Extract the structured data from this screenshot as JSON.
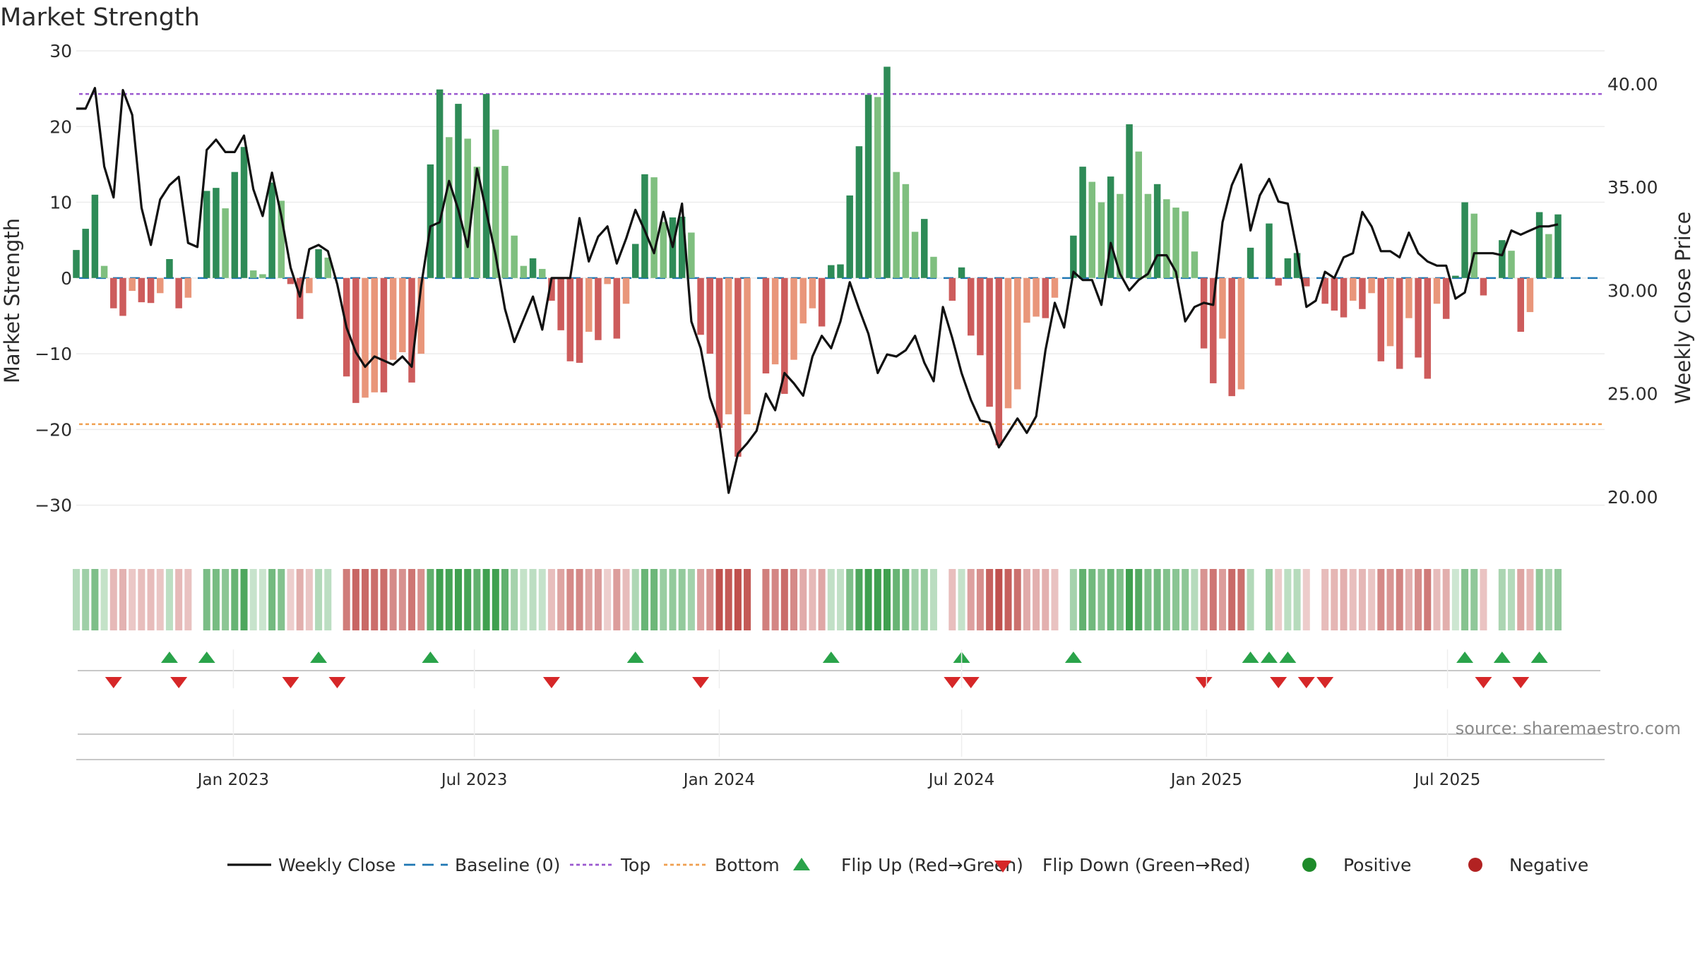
{
  "chart_data": {
    "type": "bar+line",
    "title": "Market Strength",
    "ylabel": "Market Strength",
    "y2label": "Weekly Close Price",
    "ylim": [
      -36,
      30
    ],
    "y2lim": [
      17.4,
      41.6
    ],
    "yticks": [
      30,
      20,
      10,
      0,
      -10,
      -20,
      -30
    ],
    "yticklabels": [
      "30",
      "20",
      "10",
      "0",
      "−10",
      "−20",
      "−30"
    ],
    "y2ticks": [
      40,
      35,
      30,
      25,
      20
    ],
    "y2ticklabels": [
      "40.00",
      "35.00",
      "30.00",
      "25.00",
      "20.00"
    ],
    "x_start": "2022-09-05",
    "x_end": "2025-10-27",
    "xticks": [
      "2023-01-01",
      "2023-07-01",
      "2024-01-01",
      "2024-07-01",
      "2025-01-01",
      "2025-07-01"
    ],
    "xticklabels": [
      "Jan 2023",
      "Jul 2023",
      "Jan 2024",
      "Jul 2024",
      "Jan 2025",
      "Jul 2025"
    ],
    "reference_lines": {
      "top": 24.3,
      "bottom": -19.3,
      "baseline": 0
    },
    "weeks": [
      {
        "date": "2022-09-05",
        "strength": 3.7,
        "close": 38.8
      },
      {
        "date": "2022-09-12",
        "strength": 6.5,
        "close": 38.8
      },
      {
        "date": "2022-09-19",
        "strength": 11,
        "close": 39.8
      },
      {
        "date": "2022-09-26",
        "strength": 1.6,
        "close": 36
      },
      {
        "date": "2022-10-03",
        "strength": -4,
        "close": 34.5
      },
      {
        "date": "2022-10-10",
        "strength": -5,
        "close": 39.7
      },
      {
        "date": "2022-10-17",
        "strength": -1.7,
        "close": 38.5
      },
      {
        "date": "2022-10-24",
        "strength": -3.2,
        "close": 34
      },
      {
        "date": "2022-10-31",
        "strength": -3.3,
        "close": 32.2
      },
      {
        "date": "2022-11-07",
        "strength": -2,
        "close": 34.4
      },
      {
        "date": "2022-11-14",
        "strength": 2.5,
        "close": 35.1
      },
      {
        "date": "2022-11-21",
        "strength": -4,
        "close": 35.5
      },
      {
        "date": "2022-11-28",
        "strength": -2.6,
        "close": 32.3
      },
      {
        "date": "2022-12-05",
        "strength": 0,
        "close": 32.1
      },
      {
        "date": "2022-12-12",
        "strength": 11.5,
        "close": 36.8
      },
      {
        "date": "2022-12-19",
        "strength": 11.9,
        "close": 37.3
      },
      {
        "date": "2022-12-26",
        "strength": 9.2,
        "close": 36.7
      },
      {
        "date": "2023-01-02",
        "strength": 14,
        "close": 36.7
      },
      {
        "date": "2023-01-09",
        "strength": 17.3,
        "close": 37.5
      },
      {
        "date": "2023-01-16",
        "strength": 1,
        "close": 34.9
      },
      {
        "date": "2023-01-23",
        "strength": 0.5,
        "close": 33.6
      },
      {
        "date": "2023-01-30",
        "strength": 12.6,
        "close": 35.7
      },
      {
        "date": "2023-02-06",
        "strength": 10.2,
        "close": 33.6
      },
      {
        "date": "2023-02-13",
        "strength": -0.8,
        "close": 31.1
      },
      {
        "date": "2023-02-20",
        "strength": -5.4,
        "close": 29.7
      },
      {
        "date": "2023-02-27",
        "strength": -2,
        "close": 32
      },
      {
        "date": "2023-03-06",
        "strength": 3.8,
        "close": 32.2
      },
      {
        "date": "2023-03-13",
        "strength": 2.7,
        "close": 31.9
      },
      {
        "date": "2023-03-20",
        "strength": 0,
        "close": 30.3
      },
      {
        "date": "2023-03-27",
        "strength": -13,
        "close": 28.2
      },
      {
        "date": "2023-04-03",
        "strength": -16.5,
        "close": 27
      },
      {
        "date": "2023-04-10",
        "strength": -15.8,
        "close": 26.3
      },
      {
        "date": "2023-04-17",
        "strength": -15.1,
        "close": 26.8
      },
      {
        "date": "2023-04-24",
        "strength": -15.1,
        "close": 26.6
      },
      {
        "date": "2023-05-01",
        "strength": -10.8,
        "close": 26.4
      },
      {
        "date": "2023-05-08",
        "strength": -9.8,
        "close": 26.8
      },
      {
        "date": "2023-05-15",
        "strength": -13.8,
        "close": 26.3
      },
      {
        "date": "2023-05-22",
        "strength": -10,
        "close": 30.2
      },
      {
        "date": "2023-05-29",
        "strength": 15,
        "close": 33.1
      },
      {
        "date": "2023-06-05",
        "strength": 24.9,
        "close": 33.3
      },
      {
        "date": "2023-06-12",
        "strength": 18.6,
        "close": 35.3
      },
      {
        "date": "2023-06-19",
        "strength": 23,
        "close": 33.9
      },
      {
        "date": "2023-06-26",
        "strength": 18.4,
        "close": 32.1
      },
      {
        "date": "2023-07-03",
        "strength": 14.7,
        "close": 35.9
      },
      {
        "date": "2023-07-10",
        "strength": 24.3,
        "close": 33.8
      },
      {
        "date": "2023-07-17",
        "strength": 19.6,
        "close": 31.7
      },
      {
        "date": "2023-07-24",
        "strength": 14.8,
        "close": 29.1
      },
      {
        "date": "2023-07-31",
        "strength": 5.6,
        "close": 27.5
      },
      {
        "date": "2023-08-07",
        "strength": 1.6,
        "close": 28.6
      },
      {
        "date": "2023-08-14",
        "strength": 2.6,
        "close": 29.7
      },
      {
        "date": "2023-08-21",
        "strength": 1.2,
        "close": 28.1
      },
      {
        "date": "2023-08-28",
        "strength": -3,
        "close": 30.6
      },
      {
        "date": "2023-09-04",
        "strength": -6.9,
        "close": 30.6
      },
      {
        "date": "2023-09-11",
        "strength": -11,
        "close": 30.6
      },
      {
        "date": "2023-09-18",
        "strength": -11.2,
        "close": 33.5
      },
      {
        "date": "2023-09-25",
        "strength": -7.1,
        "close": 31.4
      },
      {
        "date": "2023-10-02",
        "strength": -8.2,
        "close": 32.6
      },
      {
        "date": "2023-10-09",
        "strength": -0.8,
        "close": 33.1
      },
      {
        "date": "2023-10-16",
        "strength": -8,
        "close": 31.3
      },
      {
        "date": "2023-10-23",
        "strength": -3.4,
        "close": 32.5
      },
      {
        "date": "2023-10-30",
        "strength": 4.5,
        "close": 33.9
      },
      {
        "date": "2023-11-06",
        "strength": 13.7,
        "close": 32.9
      },
      {
        "date": "2023-11-13",
        "strength": 13.3,
        "close": 31.8
      },
      {
        "date": "2023-11-20",
        "strength": 7.4,
        "close": 33.8
      },
      {
        "date": "2023-11-27",
        "strength": 8,
        "close": 32.1
      },
      {
        "date": "2023-12-04",
        "strength": 8.1,
        "close": 34.2
      },
      {
        "date": "2023-12-11",
        "strength": 6,
        "close": 28.5
      },
      {
        "date": "2023-12-18",
        "strength": -7.5,
        "close": 27.2
      },
      {
        "date": "2023-12-25",
        "strength": -10,
        "close": 24.8
      },
      {
        "date": "2024-01-01",
        "strength": -19.8,
        "close": 23.5
      },
      {
        "date": "2024-01-08",
        "strength": -18,
        "close": 20.2
      },
      {
        "date": "2024-01-15",
        "strength": -23.6,
        "close": 22.1
      },
      {
        "date": "2024-01-22",
        "strength": -18,
        "close": 22.6
      },
      {
        "date": "2024-01-29",
        "strength": 0,
        "close": 23.2
      },
      {
        "date": "2024-02-05",
        "strength": -12.6,
        "close": 25
      },
      {
        "date": "2024-02-12",
        "strength": -11.4,
        "close": 24.2
      },
      {
        "date": "2024-02-19",
        "strength": -15.3,
        "close": 26
      },
      {
        "date": "2024-02-26",
        "strength": -10.8,
        "close": 25.5
      },
      {
        "date": "2024-03-04",
        "strength": -6,
        "close": 24.9
      },
      {
        "date": "2024-03-11",
        "strength": -4,
        "close": 26.8
      },
      {
        "date": "2024-03-18",
        "strength": -6.4,
        "close": 27.8
      },
      {
        "date": "2024-03-25",
        "strength": 1.7,
        "close": 27.2
      },
      {
        "date": "2024-04-01",
        "strength": 1.8,
        "close": 28.5
      },
      {
        "date": "2024-04-08",
        "strength": 10.9,
        "close": 30.4
      },
      {
        "date": "2024-04-15",
        "strength": 17.4,
        "close": 29.1
      },
      {
        "date": "2024-04-22",
        "strength": 24.2,
        "close": 27.9
      },
      {
        "date": "2024-04-29",
        "strength": 23.9,
        "close": 26
      },
      {
        "date": "2024-05-06",
        "strength": 27.9,
        "close": 26.9
      },
      {
        "date": "2024-05-13",
        "strength": 14,
        "close": 26.8
      },
      {
        "date": "2024-05-20",
        "strength": 12.4,
        "close": 27.1
      },
      {
        "date": "2024-05-27",
        "strength": 6.1,
        "close": 27.8
      },
      {
        "date": "2024-06-03",
        "strength": 7.8,
        "close": 26.5
      },
      {
        "date": "2024-06-10",
        "strength": 2.8,
        "close": 25.6
      },
      {
        "date": "2024-06-17",
        "strength": 0,
        "close": 29.2
      },
      {
        "date": "2024-06-24",
        "strength": -3,
        "close": 27.7
      },
      {
        "date": "2024-07-01",
        "strength": 1.4,
        "close": 26
      },
      {
        "date": "2024-07-08",
        "strength": -7.6,
        "close": 24.7
      },
      {
        "date": "2024-07-15",
        "strength": -10.2,
        "close": 23.7
      },
      {
        "date": "2024-07-22",
        "strength": -17,
        "close": 23.6
      },
      {
        "date": "2024-07-29",
        "strength": -22.1,
        "close": 22.4
      },
      {
        "date": "2024-08-05",
        "strength": -17.2,
        "close": 23.1
      },
      {
        "date": "2024-08-12",
        "strength": -14.7,
        "close": 23.8
      },
      {
        "date": "2024-08-19",
        "strength": -5.9,
        "close": 23.1
      },
      {
        "date": "2024-08-26",
        "strength": -5.1,
        "close": 23.9
      },
      {
        "date": "2024-09-02",
        "strength": -5.3,
        "close": 27.1
      },
      {
        "date": "2024-09-09",
        "strength": -2.6,
        "close": 29.4
      },
      {
        "date": "2024-09-16",
        "strength": 0,
        "close": 28.2
      },
      {
        "date": "2024-09-23",
        "strength": 5.6,
        "close": 30.9
      },
      {
        "date": "2024-09-30",
        "strength": 14.7,
        "close": 30.5
      },
      {
        "date": "2024-10-07",
        "strength": 12.7,
        "close": 30.5
      },
      {
        "date": "2024-10-14",
        "strength": 10,
        "close": 29.3
      },
      {
        "date": "2024-10-21",
        "strength": 13.4,
        "close": 32.3
      },
      {
        "date": "2024-10-28",
        "strength": 11.1,
        "close": 30.8
      },
      {
        "date": "2024-11-04",
        "strength": 20.3,
        "close": 30
      },
      {
        "date": "2024-11-11",
        "strength": 16.7,
        "close": 30.5
      },
      {
        "date": "2024-11-18",
        "strength": 11.1,
        "close": 30.8
      },
      {
        "date": "2024-11-25",
        "strength": 12.4,
        "close": 31.7
      },
      {
        "date": "2024-12-02",
        "strength": 10.4,
        "close": 31.7
      },
      {
        "date": "2024-12-09",
        "strength": 9.3,
        "close": 30.9
      },
      {
        "date": "2024-12-16",
        "strength": 8.8,
        "close": 28.5
      },
      {
        "date": "2024-12-23",
        "strength": 3.5,
        "close": 29.2
      },
      {
        "date": "2024-12-30",
        "strength": -9.3,
        "close": 29.4
      },
      {
        "date": "2025-01-06",
        "strength": -13.9,
        "close": 29.3
      },
      {
        "date": "2025-01-13",
        "strength": -8,
        "close": 33.3
      },
      {
        "date": "2025-01-20",
        "strength": -15.6,
        "close": 35.1
      },
      {
        "date": "2025-01-27",
        "strength": -14.7,
        "close": 36.1
      },
      {
        "date": "2025-02-03",
        "strength": 4,
        "close": 32.9
      },
      {
        "date": "2025-02-10",
        "strength": 0,
        "close": 34.6
      },
      {
        "date": "2025-02-17",
        "strength": 7.2,
        "close": 35.4
      },
      {
        "date": "2025-02-24",
        "strength": -1,
        "close": 34.3
      },
      {
        "date": "2025-03-03",
        "strength": 2.6,
        "close": 34.2
      },
      {
        "date": "2025-03-10",
        "strength": 3.3,
        "close": 31.9
      },
      {
        "date": "2025-03-17",
        "strength": -1.1,
        "close": 29.2
      },
      {
        "date": "2025-03-24",
        "strength": 0,
        "close": 29.5
      },
      {
        "date": "2025-03-31",
        "strength": -3.4,
        "close": 30.9
      },
      {
        "date": "2025-04-07",
        "strength": -4.3,
        "close": 30.6
      },
      {
        "date": "2025-04-14",
        "strength": -5.2,
        "close": 31.6
      },
      {
        "date": "2025-04-21",
        "strength": -3,
        "close": 31.8
      },
      {
        "date": "2025-04-28",
        "strength": -4.1,
        "close": 33.8
      },
      {
        "date": "2025-05-05",
        "strength": -2,
        "close": 33.1
      },
      {
        "date": "2025-05-12",
        "strength": -11,
        "close": 31.9
      },
      {
        "date": "2025-05-19",
        "strength": -9,
        "close": 31.9
      },
      {
        "date": "2025-05-26",
        "strength": -12,
        "close": 31.6
      },
      {
        "date": "2025-06-02",
        "strength": -5.3,
        "close": 32.8
      },
      {
        "date": "2025-06-09",
        "strength": -10.5,
        "close": 31.8
      },
      {
        "date": "2025-06-16",
        "strength": -13.3,
        "close": 31.4
      },
      {
        "date": "2025-06-23",
        "strength": -3.4,
        "close": 31.2
      },
      {
        "date": "2025-06-30",
        "strength": -5.4,
        "close": 31.2
      },
      {
        "date": "2025-07-07",
        "strength": 0.3,
        "close": 29.6
      },
      {
        "date": "2025-07-14",
        "strength": 10,
        "close": 29.9
      },
      {
        "date": "2025-07-21",
        "strength": 8.5,
        "close": 31.8
      },
      {
        "date": "2025-07-28",
        "strength": -2.3,
        "close": 31.8
      },
      {
        "date": "2025-08-04",
        "strength": 0,
        "close": 31.8
      },
      {
        "date": "2025-08-11",
        "strength": 5,
        "close": 31.7
      },
      {
        "date": "2025-08-18",
        "strength": 3.6,
        "close": 32.9
      },
      {
        "date": "2025-08-25",
        "strength": -7.1,
        "close": 32.7
      },
      {
        "date": "2025-09-01",
        "strength": -4.5,
        "close": 32.9
      },
      {
        "date": "2025-09-08",
        "strength": 8.7,
        "close": 33.1
      },
      {
        "date": "2025-09-15",
        "strength": 5.8,
        "close": 33.1
      },
      {
        "date": "2025-09-22",
        "strength": 8.4,
        "close": 33.2
      }
    ],
    "flips_up": [
      "2022-11-14",
      "2022-12-12",
      "2023-03-06",
      "2023-05-29",
      "2023-10-30",
      "2024-03-25",
      "2024-07-01",
      "2024-09-23",
      "2025-02-03",
      "2025-02-17",
      "2025-03-03",
      "2025-07-14",
      "2025-08-11",
      "2025-09-08"
    ],
    "flips_down": [
      "2022-10-03",
      "2022-11-21",
      "2023-02-13",
      "2023-03-20",
      "2023-08-28",
      "2023-12-18",
      "2024-06-24",
      "2024-07-08",
      "2024-12-30",
      "2025-02-24",
      "2025-03-17",
      "2025-03-31",
      "2025-07-28",
      "2025-08-25"
    ],
    "colors": {
      "strong_positive": "#2e8b57",
      "weak_positive": "#7fbf7f",
      "strong_negative": "#cd5c5c",
      "weak_negative": "#e9967a",
      "close_line": "#111111",
      "baseline": "#1f77b4",
      "top_line": "#9b59d0",
      "bottom_line": "#f0a050",
      "flip_up_marker": "#2aa34a",
      "flip_down_marker": "#d62728",
      "positive_dot": "#1e8b2a",
      "negative_dot": "#b22222"
    },
    "legend": [
      {
        "label": "Weekly Close",
        "kind": "line"
      },
      {
        "label": "Baseline (0)",
        "kind": "dash"
      },
      {
        "label": "Top",
        "kind": "dot-purple"
      },
      {
        "label": "Bottom",
        "kind": "dot-orange"
      },
      {
        "label": "Flip Up (Red→Green)",
        "kind": "tri-up"
      },
      {
        "label": "Flip Down (Green→Red)",
        "kind": "tri-down"
      },
      {
        "label": "Positive",
        "kind": "dot-green"
      },
      {
        "label": "Negative",
        "kind": "dot-red"
      }
    ],
    "source": "source: sharemaestro.com"
  }
}
